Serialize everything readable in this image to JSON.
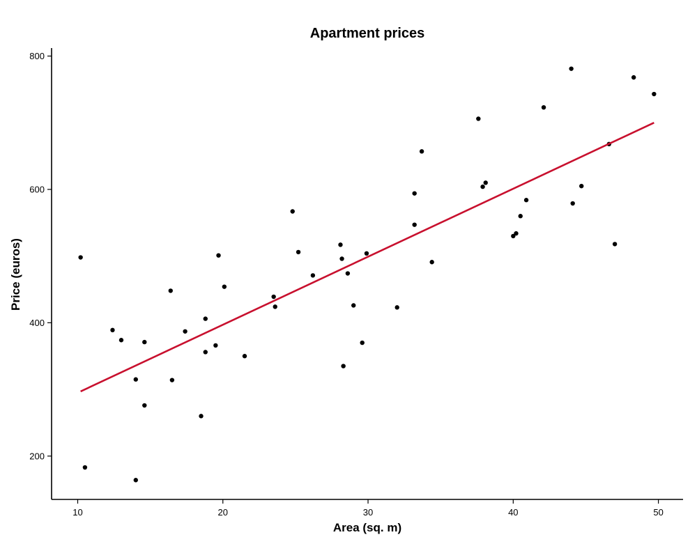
{
  "chart_data": {
    "type": "scatter",
    "title": "Apartment prices",
    "xlabel": "Area (sq. m)",
    "ylabel": "Price (euros)",
    "xlim": [
      8.2,
      51.7
    ],
    "ylim": [
      135,
      812
    ],
    "xticks": [
      10,
      20,
      30,
      40,
      50
    ],
    "yticks": [
      200,
      400,
      600,
      800
    ],
    "grid": false,
    "legend": "none",
    "colors": {
      "points": "#000000",
      "fit_line": "#c8102e"
    },
    "points": [
      {
        "x": 10.2,
        "y": 498
      },
      {
        "x": 10.5,
        "y": 183
      },
      {
        "x": 12.4,
        "y": 389
      },
      {
        "x": 13.0,
        "y": 374
      },
      {
        "x": 14.0,
        "y": 315
      },
      {
        "x": 14.0,
        "y": 164
      },
      {
        "x": 14.6,
        "y": 371
      },
      {
        "x": 14.6,
        "y": 276
      },
      {
        "x": 16.4,
        "y": 448
      },
      {
        "x": 16.5,
        "y": 314
      },
      {
        "x": 17.4,
        "y": 387
      },
      {
        "x": 18.5,
        "y": 260
      },
      {
        "x": 18.8,
        "y": 406
      },
      {
        "x": 18.8,
        "y": 356
      },
      {
        "x": 19.5,
        "y": 366
      },
      {
        "x": 19.7,
        "y": 501
      },
      {
        "x": 20.1,
        "y": 454
      },
      {
        "x": 21.5,
        "y": 350
      },
      {
        "x": 23.5,
        "y": 439
      },
      {
        "x": 23.6,
        "y": 424
      },
      {
        "x": 24.8,
        "y": 567
      },
      {
        "x": 25.2,
        "y": 506
      },
      {
        "x": 26.2,
        "y": 471
      },
      {
        "x": 28.1,
        "y": 517
      },
      {
        "x": 28.2,
        "y": 496
      },
      {
        "x": 28.3,
        "y": 335
      },
      {
        "x": 28.6,
        "y": 474
      },
      {
        "x": 29.0,
        "y": 426
      },
      {
        "x": 29.6,
        "y": 370
      },
      {
        "x": 29.9,
        "y": 504
      },
      {
        "x": 32.0,
        "y": 423
      },
      {
        "x": 33.2,
        "y": 594
      },
      {
        "x": 33.2,
        "y": 547
      },
      {
        "x": 33.7,
        "y": 657
      },
      {
        "x": 34.4,
        "y": 491
      },
      {
        "x": 37.6,
        "y": 706
      },
      {
        "x": 37.9,
        "y": 604
      },
      {
        "x": 38.1,
        "y": 610
      },
      {
        "x": 40.0,
        "y": 530
      },
      {
        "x": 40.2,
        "y": 534
      },
      {
        "x": 40.5,
        "y": 560
      },
      {
        "x": 40.9,
        "y": 584
      },
      {
        "x": 42.1,
        "y": 723
      },
      {
        "x": 44.0,
        "y": 781
      },
      {
        "x": 44.1,
        "y": 579
      },
      {
        "x": 44.7,
        "y": 605
      },
      {
        "x": 46.6,
        "y": 668
      },
      {
        "x": 47.0,
        "y": 518
      },
      {
        "x": 48.3,
        "y": 768
      },
      {
        "x": 49.7,
        "y": 743
      }
    ],
    "fit_line": {
      "x": [
        10.2,
        49.7
      ],
      "y": [
        297,
        700
      ]
    }
  }
}
